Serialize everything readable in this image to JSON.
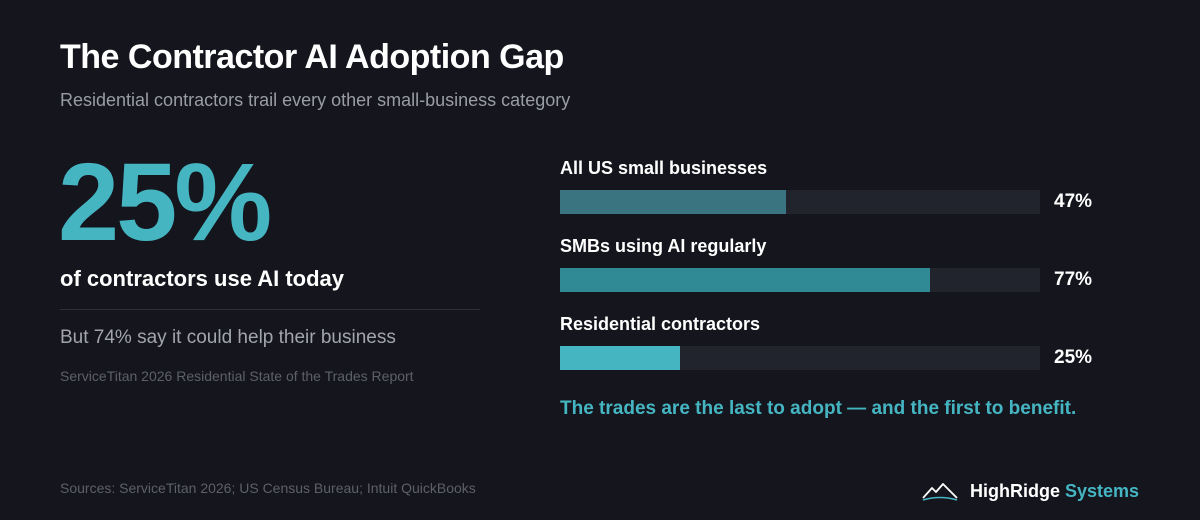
{
  "title": "The Contractor AI Adoption Gap",
  "subtitle": "Residential contractors trail every other small-business category",
  "stat": {
    "value": "25%",
    "caption": "of contractors use AI today",
    "note": "But 74% say it could help their business",
    "source": "ServiceTitan 2026 Residential State of the Trades Report"
  },
  "chart_data": {
    "type": "bar",
    "orientation": "horizontal",
    "categories": [
      "All US small businesses",
      "SMBs using AI regularly",
      "Residential contractors"
    ],
    "values": [
      47,
      77,
      25
    ],
    "value_labels": [
      "47%",
      "77%",
      "25%"
    ],
    "xlim": [
      0,
      100
    ],
    "colors": [
      "#3a7480",
      "#2f8a95",
      "#45b5c2"
    ],
    "track_color": "#21232d",
    "grid": false,
    "legend": "none"
  },
  "tagline": "The trades are the last to adopt — and the first to benefit.",
  "sources": "Sources: ServiceTitan 2026; US Census Bureau; Intuit QuickBooks",
  "brand": {
    "name": "HighRidge",
    "accent": "Systems",
    "icon": "mountain-icon"
  },
  "colors": {
    "background": "#14151d",
    "accent": "#45b5c2"
  }
}
